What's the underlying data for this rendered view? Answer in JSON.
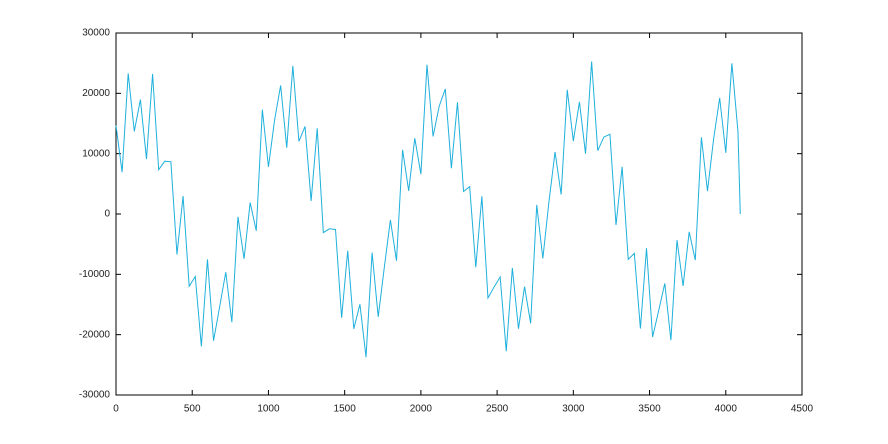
{
  "chart_data": {
    "type": "line",
    "x": [
      0,
      40,
      80,
      120,
      160,
      200,
      240,
      280,
      320,
      360,
      400,
      440,
      480,
      520,
      560,
      600,
      640,
      680,
      720,
      760,
      800,
      840,
      880,
      920,
      960,
      1000,
      1040,
      1080,
      1120,
      1160,
      1200,
      1240,
      1280,
      1320,
      1360,
      1400,
      1440,
      1480,
      1520,
      1560,
      1600,
      1640,
      1680,
      1720,
      1760,
      1800,
      1840,
      1880,
      1920,
      1960,
      2000,
      2040,
      2080,
      2120,
      2160,
      2200,
      2240,
      2280,
      2320,
      2360,
      2400,
      2440,
      2480,
      2520,
      2560,
      2600,
      2640,
      2680,
      2720,
      2760,
      2800,
      2840,
      2880,
      2920,
      2960,
      3000,
      3040,
      3080,
      3120,
      3160,
      3200,
      3240,
      3280,
      3320,
      3360,
      3400,
      3440,
      3480,
      3520,
      3560,
      3600,
      3640,
      3680,
      3720,
      3760,
      3800,
      3840,
      3880,
      3920,
      3960,
      4000,
      4040,
      4080,
      4095
    ],
    "series": [
      {
        "color": "#1fb0dc",
        "values": [
          14680,
          6930,
          23300,
          13690,
          18960,
          9110,
          23210,
          7350,
          8750,
          8650,
          -6710,
          2970,
          -11980,
          -10360,
          -21940,
          -7520,
          -21000,
          -15360,
          -9640,
          -17940,
          -470,
          -7430,
          1910,
          -2770,
          17290,
          7810,
          15530,
          21310,
          10990,
          24550,
          12040,
          14510,
          2160,
          14200,
          -3080,
          -2450,
          -2560,
          -17200,
          -6090,
          -19040,
          -14950,
          -23730,
          -6410,
          -17060,
          -8850,
          -980,
          -7750,
          10630,
          3830,
          12560,
          6610,
          24760,
          12860,
          17860,
          20730,
          7580,
          18510,
          3750,
          4540,
          -8810,
          2940,
          -13920,
          -12110,
          -10430,
          -22740,
          -8940,
          -19020,
          -12040,
          -18130,
          1500,
          -7360,
          2010,
          10280,
          3230,
          20580,
          12080,
          18580,
          9990,
          25270,
          10500,
          12750,
          13220,
          -1830,
          7820,
          -7520,
          -6530,
          -18990,
          -5670,
          -20380,
          -16000,
          -11500,
          -20910,
          -4330,
          -11930,
          -2960,
          -7650,
          12710,
          3800,
          12400,
          19240,
          10140,
          24970,
          13670,
          0
        ]
      }
    ],
    "xlim": [
      0,
      4500
    ],
    "xticks": [
      0,
      500,
      1000,
      1500,
      2000,
      2500,
      3000,
      3500,
      4000,
      4500
    ],
    "ylim": [
      -30000,
      30000
    ],
    "yticks": [
      -30000,
      -20000,
      -10000,
      0,
      10000,
      20000,
      30000
    ]
  }
}
